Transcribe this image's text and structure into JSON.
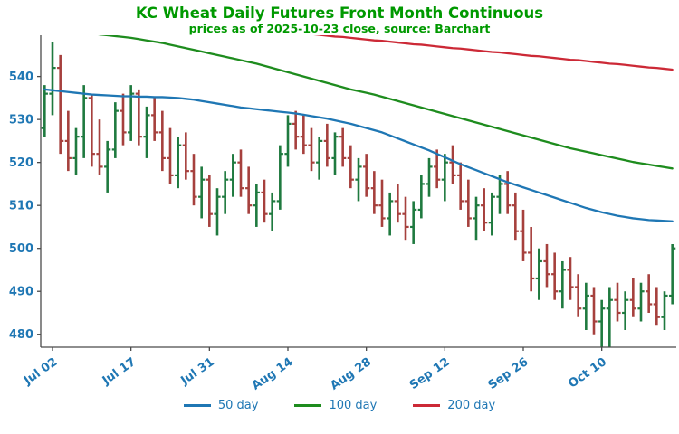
{
  "header": {
    "title": "KC Wheat Daily Futures Front Month Continuous",
    "subtitle": "prices as of 2025-10-23 close, source: Barchart",
    "title_color": "#009900"
  },
  "legend": {
    "items": [
      {
        "label": "50 day",
        "color": "#1f77b4"
      },
      {
        "label": "100 day",
        "color": "#1e8c1e"
      },
      {
        "label": "200 day",
        "color": "#cc2936"
      }
    ]
  },
  "chart_data": {
    "type": "ohlc",
    "title": "KC Wheat Daily Futures Front Month Continuous",
    "subtitle": "prices as of 2025-10-23 close, source: Barchart",
    "xlabel": "",
    "ylabel": "",
    "grid": false,
    "legend_position": "bottom",
    "ylim": [
      477.0,
      549.6
    ],
    "y_ticks": [
      480,
      490,
      500,
      510,
      520,
      530,
      540
    ],
    "x_tick_labels": [
      "Jul 02",
      "Jul 17",
      "Jul 31",
      "Aug 14",
      "Aug 28",
      "Sep 12",
      "Sep 26",
      "Oct 10"
    ],
    "x_tick_indices": [
      1,
      11,
      21,
      31,
      41,
      51,
      61,
      71
    ],
    "colors": {
      "up": "#1f7a3f",
      "down": "#a6403d",
      "ma50": "#1f77b4",
      "ma100": "#1e8c1e",
      "ma200": "#cc2936",
      "axis_label": "#1f77b4",
      "spine": "#4a4a4a"
    },
    "bar_format": [
      "date",
      "open",
      "high",
      "low",
      "close"
    ],
    "series": {
      "bars": [
        [
          "Jul 01",
          528,
          538,
          526,
          536
        ],
        [
          "Jul 02",
          536,
          548,
          531,
          542
        ],
        [
          "Jul 03",
          542,
          545,
          522,
          525
        ],
        [
          "Jul 07",
          525,
          532,
          518,
          521
        ],
        [
          "Jul 08",
          521,
          528,
          517,
          526
        ],
        [
          "Jul 09",
          526,
          538,
          521,
          535
        ],
        [
          "Jul 10",
          535,
          536,
          519,
          522
        ],
        [
          "Jul 11",
          522,
          530,
          517,
          519
        ],
        [
          "Jul 14",
          519,
          525,
          513,
          523
        ],
        [
          "Jul 15",
          523,
          534,
          521,
          532
        ],
        [
          "Jul 16",
          532,
          536,
          524,
          527
        ],
        [
          "Jul 17",
          527,
          538,
          525,
          536
        ],
        [
          "Jul 18",
          536,
          537,
          524,
          526
        ],
        [
          "Jul 21",
          526,
          533,
          521,
          531
        ],
        [
          "Jul 22",
          531,
          535,
          525,
          527
        ],
        [
          "Jul 23",
          527,
          532,
          518,
          521
        ],
        [
          "Jul 24",
          521,
          528,
          515,
          517
        ],
        [
          "Jul 25",
          517,
          526,
          514,
          524
        ],
        [
          "Jul 28",
          524,
          527,
          516,
          518
        ],
        [
          "Jul 29",
          518,
          522,
          510,
          512
        ],
        [
          "Jul 30",
          512,
          519,
          507,
          516
        ],
        [
          "Jul 31",
          516,
          517,
          505,
          508
        ],
        [
          "Aug 01",
          508,
          514,
          503,
          512
        ],
        [
          "Aug 04",
          512,
          518,
          508,
          516
        ],
        [
          "Aug 05",
          516,
          522,
          512,
          520
        ],
        [
          "Aug 06",
          520,
          523,
          512,
          514
        ],
        [
          "Aug 07",
          514,
          519,
          508,
          510
        ],
        [
          "Aug 08",
          510,
          515,
          505,
          513
        ],
        [
          "Aug 11",
          513,
          516,
          506,
          508
        ],
        [
          "Aug 12",
          508,
          513,
          504,
          511
        ],
        [
          "Aug 13",
          511,
          524,
          509,
          522
        ],
        [
          "Aug 14",
          522,
          531,
          519,
          529
        ],
        [
          "Aug 15",
          529,
          532,
          523,
          526
        ],
        [
          "Aug 18",
          526,
          531,
          522,
          524
        ],
        [
          "Aug 19",
          524,
          528,
          518,
          520
        ],
        [
          "Aug 20",
          520,
          526,
          516,
          525
        ],
        [
          "Aug 21",
          525,
          529,
          519,
          521
        ],
        [
          "Aug 22",
          521,
          527,
          517,
          526
        ],
        [
          "Aug 25",
          526,
          528,
          519,
          521
        ],
        [
          "Aug 26",
          521,
          524,
          514,
          516
        ],
        [
          "Aug 27",
          516,
          521,
          511,
          519
        ],
        [
          "Aug 28",
          519,
          522,
          512,
          514
        ],
        [
          "Aug 29",
          514,
          518,
          508,
          510
        ],
        [
          "Sep 02",
          510,
          516,
          505,
          507
        ],
        [
          "Sep 03",
          507,
          513,
          503,
          511
        ],
        [
          "Sep 04",
          511,
          515,
          506,
          508
        ],
        [
          "Sep 05",
          508,
          512,
          502,
          505
        ],
        [
          "Sep 08",
          505,
          511,
          501,
          509
        ],
        [
          "Sep 09",
          509,
          517,
          507,
          515
        ],
        [
          "Sep 10",
          515,
          521,
          512,
          519
        ],
        [
          "Sep 11",
          519,
          523,
          514,
          516
        ],
        [
          "Sep 12",
          516,
          522,
          511,
          520
        ],
        [
          "Sep 15",
          520,
          524,
          515,
          517
        ],
        [
          "Sep 16",
          517,
          520,
          509,
          511
        ],
        [
          "Sep 17",
          511,
          516,
          505,
          507
        ],
        [
          "Sep 18",
          507,
          512,
          502,
          510
        ],
        [
          "Sep 19",
          510,
          514,
          504,
          506
        ],
        [
          "Sep 22",
          506,
          513,
          503,
          512
        ],
        [
          "Sep 23",
          512,
          517,
          508,
          515
        ],
        [
          "Sep 24",
          515,
          518,
          508,
          510
        ],
        [
          "Sep 25",
          510,
          513,
          502,
          504
        ],
        [
          "Sep 26",
          504,
          509,
          497,
          499
        ],
        [
          "Sep 29",
          499,
          505,
          490,
          493
        ],
        [
          "Sep 30",
          493,
          500,
          488,
          497
        ],
        [
          "Oct 01",
          497,
          501,
          491,
          494
        ],
        [
          "Oct 02",
          494,
          499,
          488,
          490
        ],
        [
          "Oct 03",
          490,
          497,
          486,
          495
        ],
        [
          "Oct 06",
          495,
          498,
          488,
          491
        ],
        [
          "Oct 07",
          491,
          494,
          484,
          486
        ],
        [
          "Oct 08",
          486,
          492,
          481,
          489
        ],
        [
          "Oct 09",
          489,
          491,
          480,
          483
        ],
        [
          "Oct 10",
          483,
          488,
          477,
          486
        ],
        [
          "Oct 13",
          486,
          491,
          476,
          488
        ],
        [
          "Oct 14",
          488,
          492,
          483,
          485
        ],
        [
          "Oct 15",
          485,
          490,
          481,
          488
        ],
        [
          "Oct 16",
          488,
          493,
          484,
          486
        ],
        [
          "Oct 17",
          486,
          492,
          483,
          490
        ],
        [
          "Oct 20",
          490,
          494,
          485,
          487
        ],
        [
          "Oct 21",
          487,
          491,
          482,
          484
        ],
        [
          "Oct 22",
          484,
          490,
          481,
          489
        ],
        [
          "Oct 23",
          489,
          501,
          487,
          500
        ]
      ],
      "ma50": [
        537.0,
        536.8,
        536.6,
        536.4,
        536.2,
        536.0,
        535.8,
        535.7,
        535.6,
        535.5,
        535.4,
        535.4,
        535.3,
        535.3,
        535.2,
        535.2,
        535.1,
        535.0,
        534.8,
        534.6,
        534.3,
        534.0,
        533.7,
        533.4,
        533.1,
        532.8,
        532.6,
        532.4,
        532.2,
        532.0,
        531.8,
        531.6,
        531.4,
        531.1,
        530.8,
        530.5,
        530.2,
        529.8,
        529.4,
        529.0,
        528.5,
        528.0,
        527.5,
        527.0,
        526.3,
        525.6,
        524.9,
        524.2,
        523.5,
        522.8,
        522.0,
        521.2,
        520.4,
        519.6,
        518.9,
        518.2,
        517.5,
        516.8,
        516.1,
        515.4,
        514.8,
        514.2,
        513.6,
        513.0,
        512.4,
        511.8,
        511.2,
        510.6,
        510.0,
        509.4,
        508.9,
        508.4,
        508.0,
        507.6,
        507.3,
        507.0,
        506.8,
        506.6,
        506.5,
        506.4,
        506.3
      ],
      "ma100": [
        551.8,
        551.5,
        551.2,
        550.9,
        550.6,
        550.3,
        550.0,
        549.8,
        549.6,
        549.4,
        549.2,
        549.0,
        548.7,
        548.4,
        548.1,
        547.8,
        547.4,
        547.0,
        546.6,
        546.2,
        545.8,
        545.4,
        545.0,
        544.6,
        544.2,
        543.8,
        543.4,
        543.0,
        542.5,
        542.0,
        541.5,
        541.0,
        540.5,
        540.0,
        539.5,
        539.0,
        538.5,
        538.0,
        537.5,
        537.0,
        536.6,
        536.2,
        535.8,
        535.3,
        534.8,
        534.3,
        533.8,
        533.3,
        532.8,
        532.3,
        531.8,
        531.3,
        530.8,
        530.3,
        529.8,
        529.3,
        528.8,
        528.3,
        527.8,
        527.3,
        526.8,
        526.3,
        525.8,
        525.3,
        524.8,
        524.3,
        523.8,
        523.3,
        522.9,
        522.5,
        522.1,
        521.7,
        521.3,
        520.9,
        520.5,
        520.1,
        519.8,
        519.5,
        519.2,
        518.9,
        518.6
      ],
      "ma200": [
        556.0,
        555.8,
        555.6,
        555.5,
        555.3,
        555.1,
        554.9,
        554.7,
        554.6,
        554.4,
        554.2,
        554.0,
        553.8,
        553.7,
        553.5,
        553.3,
        553.1,
        552.9,
        552.8,
        552.6,
        552.4,
        552.2,
        552.0,
        551.9,
        551.7,
        551.5,
        551.3,
        551.1,
        551.0,
        550.8,
        550.6,
        550.4,
        550.2,
        550.1,
        549.9,
        549.7,
        549.5,
        549.3,
        549.2,
        549.0,
        548.8,
        548.6,
        548.4,
        548.3,
        548.1,
        547.9,
        547.7,
        547.5,
        547.4,
        547.2,
        547.0,
        546.8,
        546.6,
        546.5,
        546.3,
        546.1,
        545.9,
        545.7,
        545.6,
        545.4,
        545.2,
        545.0,
        544.8,
        544.7,
        544.5,
        544.3,
        544.1,
        543.9,
        543.8,
        543.6,
        543.4,
        543.2,
        543.0,
        542.9,
        542.7,
        542.5,
        542.3,
        542.1,
        542.0,
        541.8,
        541.6
      ]
    }
  }
}
